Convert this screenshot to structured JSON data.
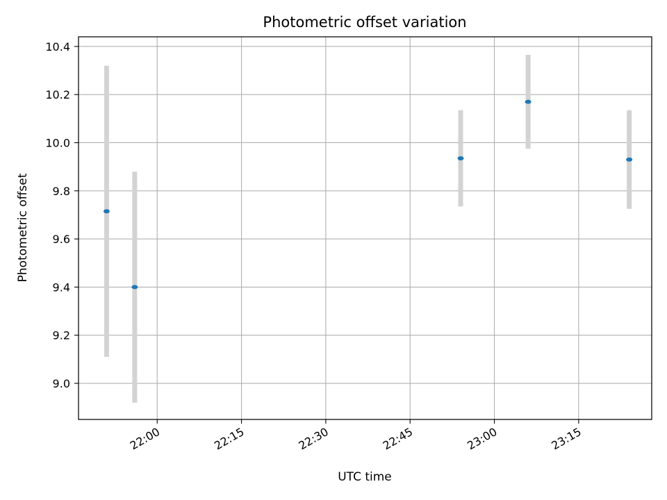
{
  "chart_data": {
    "type": "scatter",
    "title": "Photometric offset variation",
    "xlabel": "UTC time",
    "ylabel": "Photometric offset",
    "x_axis": {
      "kind": "time",
      "range": [
        "21:46",
        "23:28"
      ],
      "ticks": [
        "22:00",
        "22:15",
        "22:30",
        "22:45",
        "23:00",
        "23:15"
      ],
      "tick_label_rotation": 30
    },
    "y_axis": {
      "range": [
        8.85,
        10.44
      ],
      "ticks": [
        9.0,
        9.2,
        9.4,
        9.6,
        9.8,
        10.0,
        10.2,
        10.4
      ],
      "tick_labels": [
        "9.0",
        "9.2",
        "9.4",
        "9.6",
        "9.8",
        "10.0",
        "10.2",
        "10.4"
      ]
    },
    "grid": true,
    "series": [
      {
        "marker_color": "#1f77b4",
        "errorbar_color": "#d3d3d3",
        "points": [
          {
            "x": "21:51",
            "y": 9.715,
            "err": 0.605
          },
          {
            "x": "21:56",
            "y": 9.4,
            "err": 0.48
          },
          {
            "x": "22:54",
            "y": 9.935,
            "err": 0.2
          },
          {
            "x": "23:06",
            "y": 10.17,
            "err": 0.195
          },
          {
            "x": "23:24",
            "y": 9.93,
            "err": 0.205
          }
        ]
      }
    ]
  }
}
